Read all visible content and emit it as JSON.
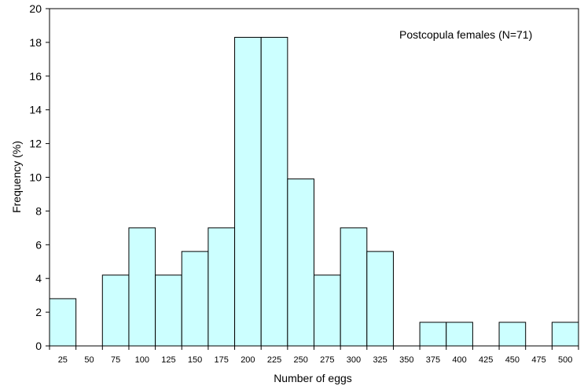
{
  "chart_data": {
    "type": "bar",
    "annotation": "Postcopula females (N=71)",
    "xlabel": "Number of eggs",
    "ylabel": "Frequency (%)",
    "ylim": [
      0,
      20
    ],
    "yticks": [
      0,
      2,
      4,
      6,
      8,
      10,
      12,
      14,
      16,
      18,
      20
    ],
    "grid": false,
    "legend": "none",
    "bar_color": "#ccffff",
    "categories": [
      "25",
      "50",
      "75",
      "100",
      "125",
      "150",
      "175",
      "200",
      "225",
      "250",
      "275",
      "300",
      "325",
      "350",
      "375",
      "400",
      "425",
      "450",
      "475",
      "500"
    ],
    "values": [
      2.8,
      0,
      4.2,
      7.0,
      4.2,
      5.6,
      7.0,
      18.3,
      18.3,
      9.9,
      4.2,
      7.0,
      5.6,
      0,
      1.4,
      1.4,
      0,
      1.4,
      0,
      1.4
    ]
  }
}
